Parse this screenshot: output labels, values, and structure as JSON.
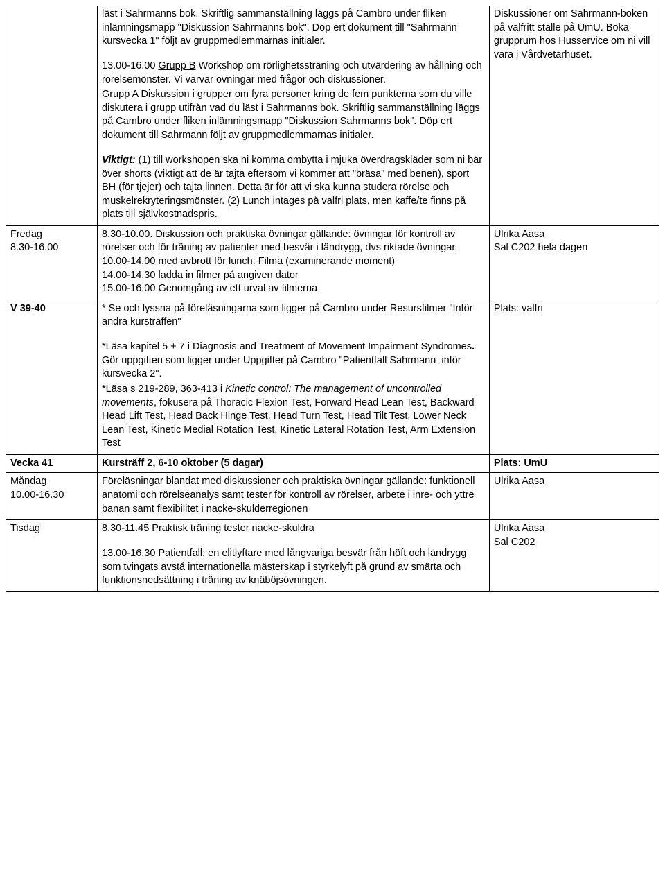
{
  "row1": {
    "left": "",
    "mid": {
      "p1a": "läst i Sahrmanns bok. Skriftlig sammanställning läggs på Cambro under fliken inlämningsmapp \"Diskussion Sahrmanns bok\". Döp ert dokument till \"Sahrmann kursvecka 1\" följt av gruppmedlemmarnas initialer.",
      "p2_time": "13.00-16.00 ",
      "p2_u": "Grupp B",
      "p2_rest": " Workshop om rörlighetssträning och utvärdering av hållning och rörelsemönster. Vi varvar övningar med frågor och diskussioner.",
      "p3_u": "Grupp A",
      "p3_rest": " Diskussion i grupper om fyra personer kring de fem punkterna som du ville diskutera i grupp utifrån vad du läst i Sahrmanns bok. Skriftlig sammanställning läggs på Cambro under fliken inlämningsmapp \"Diskussion Sahrmanns bok\". Döp ert dokument till Sahrmann följt av gruppmedlemmarnas initialer.",
      "p4_label": "Viktigt:",
      "p4_rest": " (1) till workshopen ska ni komma ombytta i mjuka överdragskläder som ni bär över shorts (viktigt att de är tajta eftersom vi kommer att \"bräsa\" med benen), sport BH (för tjejer) och tajta linnen. Detta är för att vi ska kunna studera rörelse och muskelrekryteringsmönster. (2) Lunch intages på valfri plats, men kaffe/te finns på plats till självkostnadspris."
    },
    "right": "Diskussioner om Sahrmann-boken på valfritt ställe på UmU. Boka grupprum hos Husservice om ni vill vara i Vårdvetarhuset."
  },
  "row2": {
    "left_l1": "Fredag",
    "left_l2": "8.30-16.00",
    "mid": "8.30-10.00. Diskussion och praktiska övningar gällande: övningar för kontroll av rörelser och för träning av patienter med besvär i ländrygg, dvs riktade övningar.\n10.00-14.00 med avbrott för lunch: Filma (examinerande moment)\n14.00-14.30 ladda in filmer på angiven dator\n15.00-16.00 Genomgång av ett urval av filmerna",
    "right_l1": "Ulrika Aasa",
    "right_l2": "Sal C202 hela dagen"
  },
  "row3": {
    "left": "V 39-40",
    "mid": {
      "p1": "* Se och lyssna på föreläsningarna som ligger på Cambro under Resursfilmer \"Inför andra kursträffen\"",
      "p2a": "*Läsa kapitel 5 + 7 i Diagnosis and Treatment of Movement Impairment Syndromes",
      "p2b": ". ",
      "p2c": "Gör uppgiften som ligger under Uppgifter på Cambro \"Patientfall Sahrmann_inför kursvecka 2\".",
      "p3a": "*Läsa s 219-289, 363-413 i ",
      "p3i": "Kinetic control: The management of uncontrolled movements",
      "p3b": ", fokusera på Thoracic Flexion Test, Forward Head Lean Test, Backward Head Lift Test, Head Back Hinge Test, Head Turn Test, Head Tilt Test, Lower Neck Lean Test, Kinetic Medial Rotation Test, Kinetic Lateral Rotation Test, Arm Extension Test"
    },
    "right": "Plats: valfri"
  },
  "row4": {
    "left": "Vecka 41",
    "mid": "Kursträff 2, 6-10 oktober (5 dagar)",
    "right": "Plats: UmU"
  },
  "row5": {
    "left_l1": "Måndag",
    "left_l2": "10.00-16.30",
    "mid": "Föreläsningar blandat med diskussioner och praktiska övningar gällande: funktionell anatomi och rörelseanalys samt tester för kontroll av rörelser, arbete i inre- och yttre banan samt flexibilitet i nacke-skulderregionen",
    "right": "Ulrika Aasa"
  },
  "row6": {
    "left": "Tisdag",
    "mid_p1": "8.30-11.45 Praktisk träning tester nacke-skuldra",
    "mid_p2": "13.00-16.30 Patientfall: en elitlyftare med långvariga besvär från höft och ländrygg som tvingats avstå internationella mästerskap i styrkelyft på grund av smärta och funktionsnedsättning i träning av knäböjsövningen.",
    "right_l1": "Ulrika Aasa",
    "right_l2": "Sal C202"
  }
}
